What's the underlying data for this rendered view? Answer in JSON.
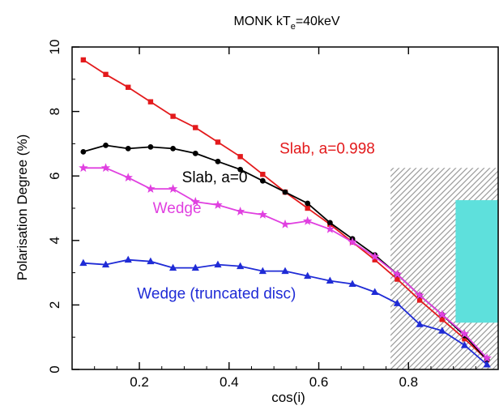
{
  "chart_data": {
    "type": "line",
    "title": "MONK kT",
    "title_subscript": "e",
    "title_suffix": "=40keV",
    "xlabel": "cos(i)",
    "ylabel": "Polarisation Degree (%)",
    "xlim": [
      0.05,
      1.0
    ],
    "ylim": [
      0,
      10
    ],
    "xticks": [
      0.2,
      0.4,
      0.6,
      0.8
    ],
    "yticks": [
      0,
      2,
      4,
      6,
      8,
      10
    ],
    "grid": false,
    "legend": "inline labels",
    "series": [
      {
        "name": "Slab, a=0.998",
        "color": "#e31a1c",
        "marker": "square",
        "x": [
          0.075,
          0.125,
          0.175,
          0.225,
          0.275,
          0.325,
          0.375,
          0.425,
          0.475,
          0.525,
          0.575,
          0.625,
          0.675,
          0.725,
          0.775,
          0.825,
          0.875,
          0.925,
          0.975
        ],
        "values": [
          9.6,
          9.15,
          8.75,
          8.3,
          7.85,
          7.5,
          7.05,
          6.6,
          6.05,
          5.5,
          5.0,
          4.5,
          3.95,
          3.4,
          2.8,
          2.15,
          1.55,
          0.95,
          0.3
        ]
      },
      {
        "name": "Slab, a=0",
        "color": "#000000",
        "marker": "circle",
        "x": [
          0.075,
          0.125,
          0.175,
          0.225,
          0.275,
          0.325,
          0.375,
          0.425,
          0.475,
          0.525,
          0.575,
          0.625,
          0.675,
          0.725,
          0.775,
          0.825,
          0.875,
          0.925,
          0.975
        ],
        "values": [
          6.75,
          6.95,
          6.85,
          6.9,
          6.85,
          6.7,
          6.45,
          6.2,
          5.85,
          5.5,
          5.15,
          4.55,
          4.05,
          3.55,
          2.95,
          2.3,
          1.7,
          1.05,
          0.3
        ]
      },
      {
        "name": "Wedge",
        "color": "#e040e0",
        "marker": "star",
        "x": [
          0.075,
          0.125,
          0.175,
          0.225,
          0.275,
          0.325,
          0.375,
          0.425,
          0.475,
          0.525,
          0.575,
          0.625,
          0.675,
          0.725,
          0.775,
          0.825,
          0.875,
          0.925,
          0.975
        ],
        "values": [
          6.25,
          6.25,
          5.95,
          5.6,
          5.6,
          5.2,
          5.1,
          4.9,
          4.8,
          4.5,
          4.6,
          4.35,
          3.95,
          3.5,
          2.95,
          2.3,
          1.7,
          1.1,
          0.35
        ]
      },
      {
        "name": "Wedge (truncated disc)",
        "color": "#1f2bd6",
        "marker": "triangle",
        "x": [
          0.075,
          0.125,
          0.175,
          0.225,
          0.275,
          0.325,
          0.375,
          0.425,
          0.475,
          0.525,
          0.575,
          0.625,
          0.675,
          0.725,
          0.775,
          0.825,
          0.875,
          0.925,
          0.975
        ],
        "values": [
          3.3,
          3.25,
          3.4,
          3.35,
          3.15,
          3.15,
          3.25,
          3.2,
          3.05,
          3.05,
          2.9,
          2.75,
          2.65,
          2.4,
          2.05,
          1.4,
          1.2,
          0.75,
          0.15
        ]
      }
    ],
    "shaded_regions": [
      {
        "style": "hatch",
        "color": "#a0a0a0",
        "x": [
          0.76,
          1.0
        ],
        "y": [
          0,
          6.25
        ]
      },
      {
        "style": "fill",
        "color": "#5ee0dc",
        "x": [
          0.905,
          1.0
        ],
        "y": [
          1.45,
          5.25
        ]
      }
    ]
  }
}
